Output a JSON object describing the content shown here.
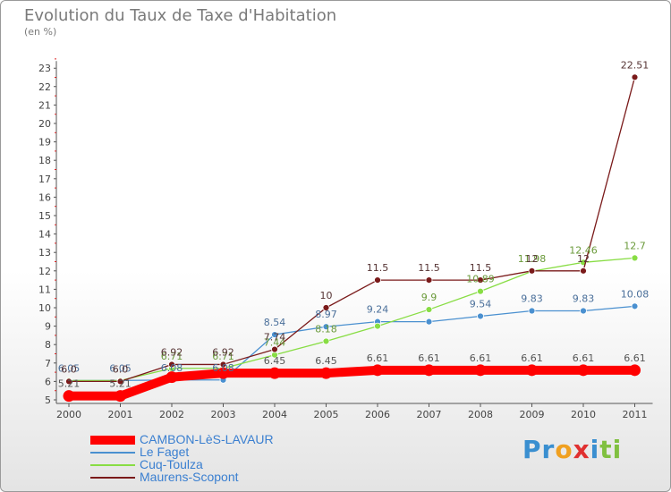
{
  "chart_data": {
    "type": "line",
    "title": "Evolution du Taux de Taxe d'Habitation",
    "subtitle": "(en %)",
    "x": [
      "2000",
      "2001",
      "2002",
      "2003",
      "2004",
      "2005",
      "2006",
      "2007",
      "2008",
      "2009",
      "2010",
      "2011"
    ],
    "ylim": [
      5,
      23
    ],
    "yticks": [
      5,
      6,
      7,
      8,
      9,
      10,
      11,
      12,
      13,
      14,
      15,
      16,
      17,
      18,
      19,
      20,
      21,
      22,
      23
    ],
    "grid": false,
    "legend_position": "bottom-left",
    "series": [
      {
        "name": "CAMBON-LèS-LAVAUR",
        "color": "#ff0000",
        "values": [
          5.21,
          5.21,
          6.23,
          6.45,
          6.45,
          6.45,
          6.61,
          6.61,
          6.61,
          6.61,
          6.61,
          6.61
        ],
        "labels": [
          "5.21",
          "5.21",
          "",
          "",
          "6.45",
          "6.45",
          "6.61",
          "6.61",
          "6.61",
          "6.61",
          "6.61",
          "6.61"
        ]
      },
      {
        "name": "Le Faget",
        "color": "#4a90d0",
        "values": [
          6.05,
          6.05,
          6.08,
          6.08,
          8.54,
          8.97,
          9.24,
          9.24,
          9.54,
          9.83,
          9.83,
          10.08
        ],
        "labels": [
          "6.05",
          "6.05",
          "6.08",
          "6.08",
          "8.54",
          "8.97",
          "9.24",
          "",
          "9.54",
          "9.83",
          "9.83",
          "10.08"
        ]
      },
      {
        "name": "Cuq-Toulza",
        "color": "#88dd44",
        "values": [
          6.05,
          6.05,
          6.71,
          6.71,
          7.44,
          8.18,
          9.0,
          9.9,
          10.89,
          11.98,
          12.46,
          12.7
        ],
        "labels": [
          "",
          "",
          "6.71",
          "6.71",
          "7.44",
          "8.18",
          "",
          "9.9",
          "10.89",
          "11.98",
          "12.46",
          "12.7"
        ]
      },
      {
        "name": "Maurens-Scopont",
        "color": "#7a1a1a",
        "values": [
          6.0,
          6.0,
          6.92,
          6.92,
          7.74,
          10.0,
          11.5,
          11.5,
          11.5,
          12.0,
          12.0,
          22.51
        ],
        "labels": [
          "6.0",
          "6.0",
          "6.92",
          "6.92",
          "7.74",
          "10",
          "11.5",
          "11.5",
          "11.5",
          "12",
          "12",
          "22.51"
        ]
      }
    ]
  },
  "logo": {
    "text": "Proxiti",
    "letters": [
      "P",
      "r",
      "o",
      "x",
      "i",
      "t",
      "i"
    ],
    "colors": [
      "#3a8fd0",
      "#3a8fd0",
      "#f0a020",
      "#e03030",
      "#3a8fd0",
      "#80c040",
      "#80c040"
    ]
  }
}
